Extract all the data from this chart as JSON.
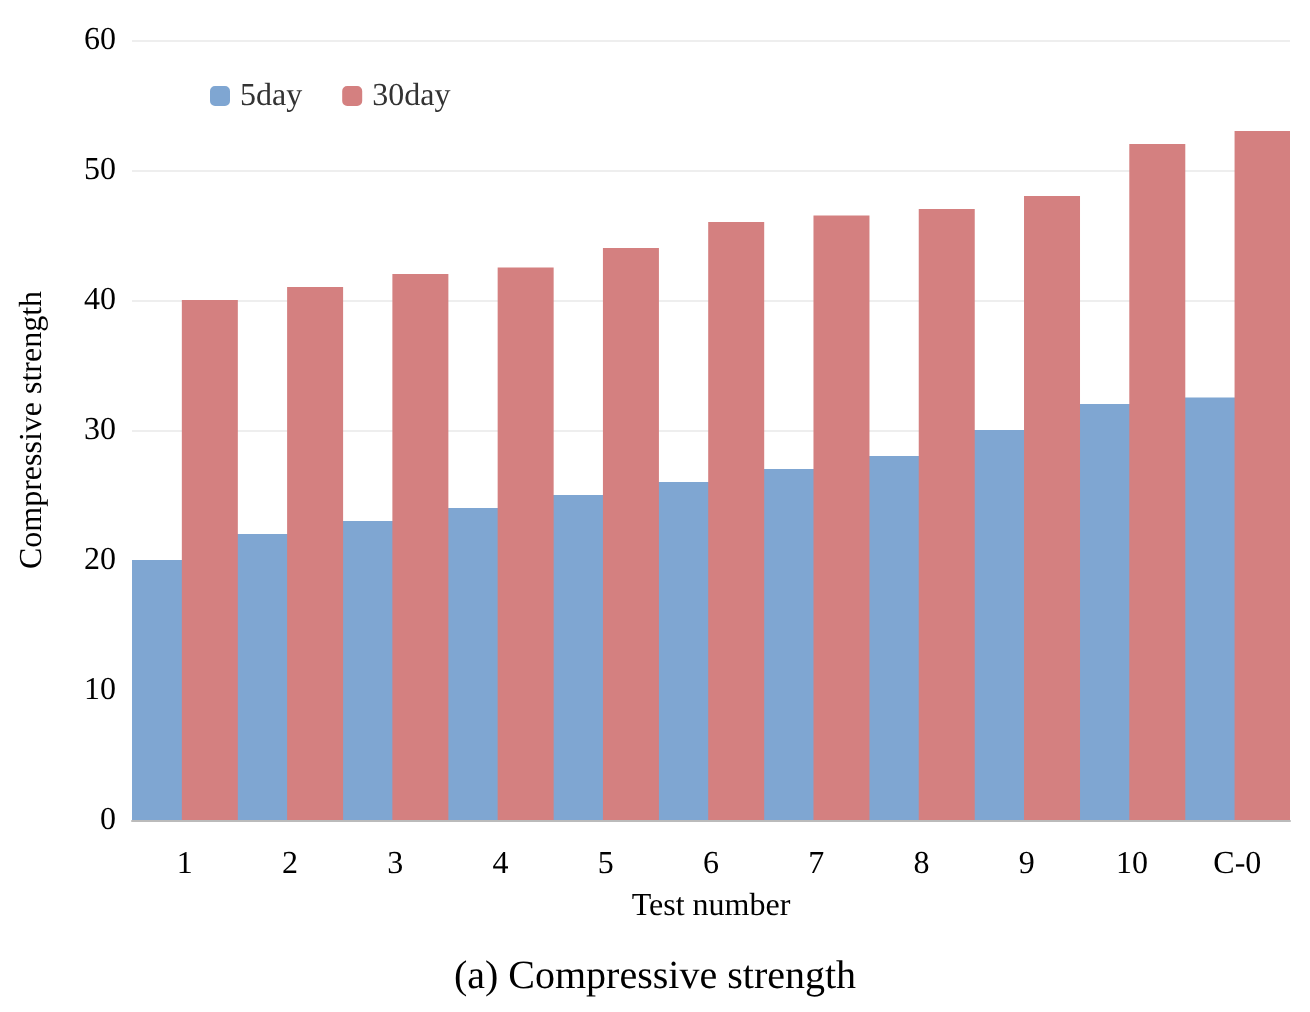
{
  "chart_data": {
    "type": "bar",
    "xlabel": "Test number",
    "ylabel": "Compressive strength",
    "annotations": [
      "(a) Compressive strength"
    ],
    "categories": [
      "1",
      "2",
      "3",
      "4",
      "5",
      "6",
      "7",
      "8",
      "9",
      "10",
      "C-0"
    ],
    "series": [
      {
        "name": "5day",
        "color": "#7fa6d2",
        "values": [
          20,
          22,
          23,
          24,
          25,
          26,
          27,
          28,
          30,
          32,
          32.5
        ]
      },
      {
        "name": "30day",
        "color": "#d48080",
        "values": [
          40,
          41,
          42,
          42.5,
          44,
          46,
          46.5,
          47,
          48,
          52,
          53
        ]
      }
    ],
    "ylim": [
      0,
      60
    ],
    "yticks": [
      0,
      10,
      20,
      30,
      40,
      50,
      60
    ],
    "grid": "y",
    "legend": "top left"
  }
}
